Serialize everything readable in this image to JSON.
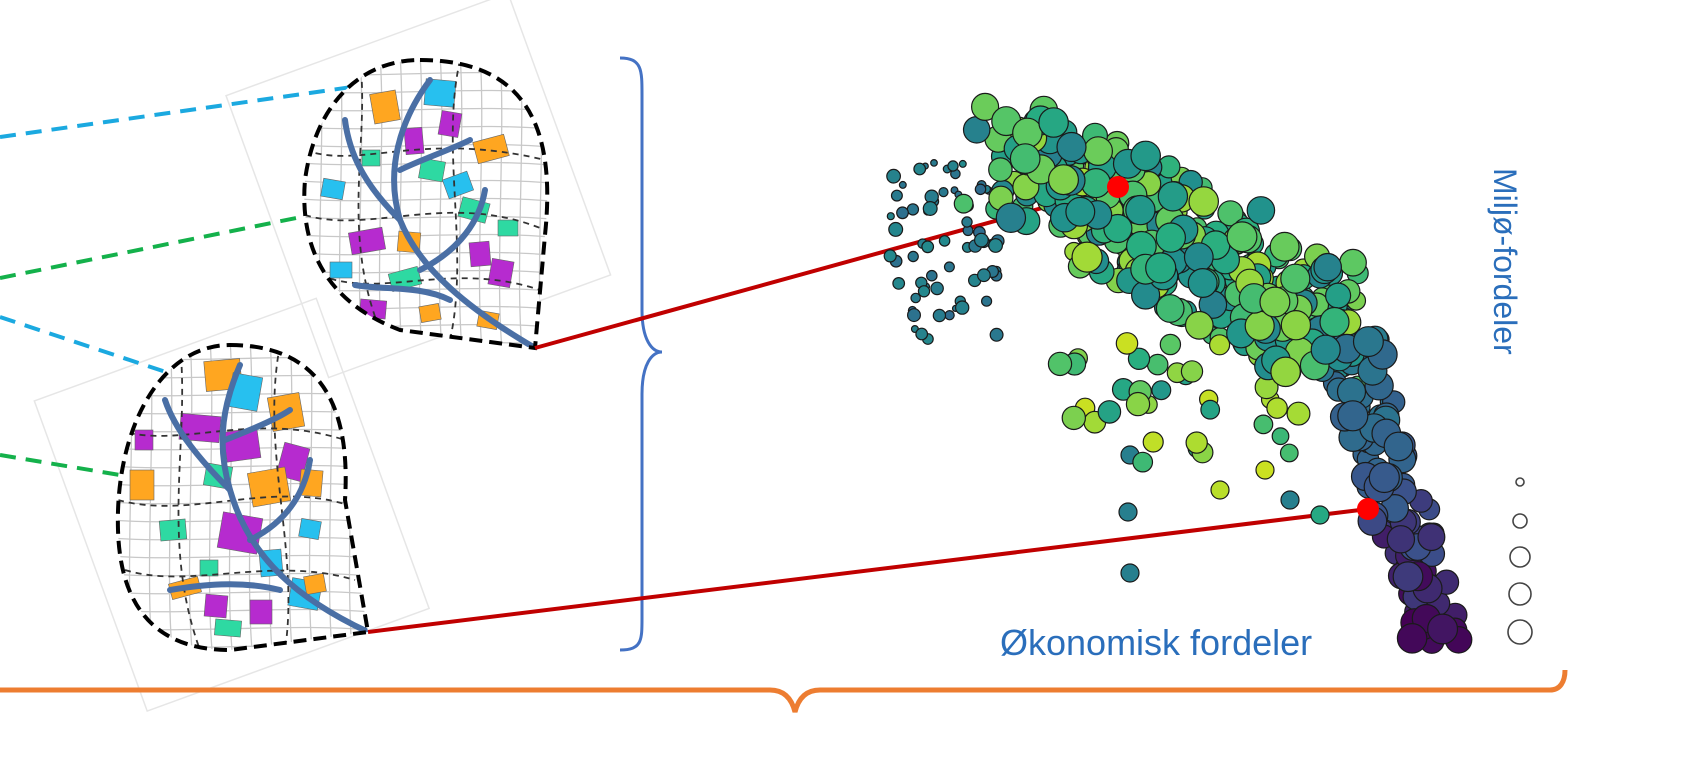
{
  "labels": {
    "x_axis": "Økonomisk fordeler",
    "y_axis": "Miljø-fordeler"
  },
  "colors": {
    "label_blue": "#2a6ebb",
    "brace_blue": "#4472c4",
    "connector_red": "#c00000",
    "highlight_point": "#ff0000",
    "dash_cyan": "#1ba9e0",
    "dash_green": "#14b14b",
    "bottom_brace_orange": "#ed7d31",
    "patch_orange": "#ffa620",
    "patch_cyan": "#27c0ef",
    "patch_magenta": "#b62bcf",
    "patch_teal": "#2ed9a2",
    "stream_blue": "#4a6fa5"
  },
  "icons": {
    "map_top": "urban-catchment-plan-icon",
    "map_bottom": "urban-catchment-plan-icon",
    "size_legend": "circle-size-legend-icon"
  }
}
